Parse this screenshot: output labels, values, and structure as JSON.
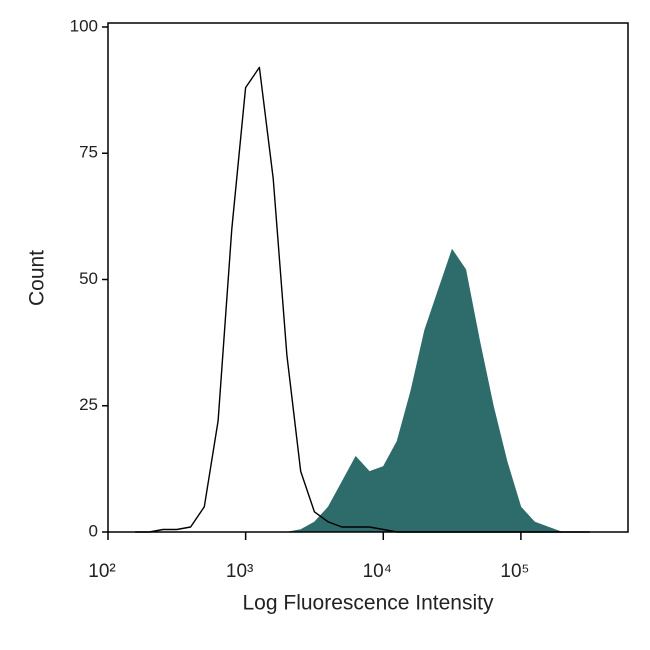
{
  "chart_data": {
    "type": "histogram-overlay",
    "x_label": "Log Fluorescence Intensity",
    "y_label": "Count",
    "x_log": true,
    "x": [
      158,
      200,
      251,
      316,
      398,
      501,
      631,
      794,
      1000,
      1259,
      1585,
      1995,
      2512,
      3162,
      3981,
      5012,
      6310,
      7943,
      10000,
      12589,
      15849,
      19953,
      25119,
      31623,
      39811,
      50119,
      63096,
      79433,
      100000,
      125893,
      158489,
      199526,
      251189,
      316228
    ],
    "series": [
      {
        "color": "#2e6b6b",
        "fill": true,
        "values": [
          0,
          0,
          0,
          0,
          0,
          0,
          0,
          0,
          0,
          0,
          0,
          0,
          0.5,
          2,
          5,
          10,
          15,
          12,
          13,
          18,
          28,
          40,
          48,
          56,
          52,
          38,
          25,
          14,
          5,
          2,
          1,
          0,
          0,
          0
        ]
      },
      {
        "color": "#000000",
        "fill": false,
        "values": [
          0,
          0,
          0.5,
          0.5,
          1,
          5,
          22,
          60,
          88,
          92,
          70,
          35,
          12,
          4,
          2,
          1,
          1,
          1,
          0.5,
          0,
          0,
          0,
          0,
          0,
          0,
          0,
          0,
          0,
          0,
          0,
          0,
          0,
          0,
          0
        ]
      }
    ],
    "xlim": [
      100,
      600000
    ],
    "xticks": [
      {
        "value": 100,
        "label": "10²"
      },
      {
        "value": 1000,
        "label": "10³"
      },
      {
        "value": 10000,
        "label": "10⁴"
      },
      {
        "value": 100000,
        "label": "10⁵"
      }
    ],
    "ylim": [
      0,
      100
    ],
    "yticks": [
      0,
      25,
      50,
      75,
      100
    ]
  }
}
